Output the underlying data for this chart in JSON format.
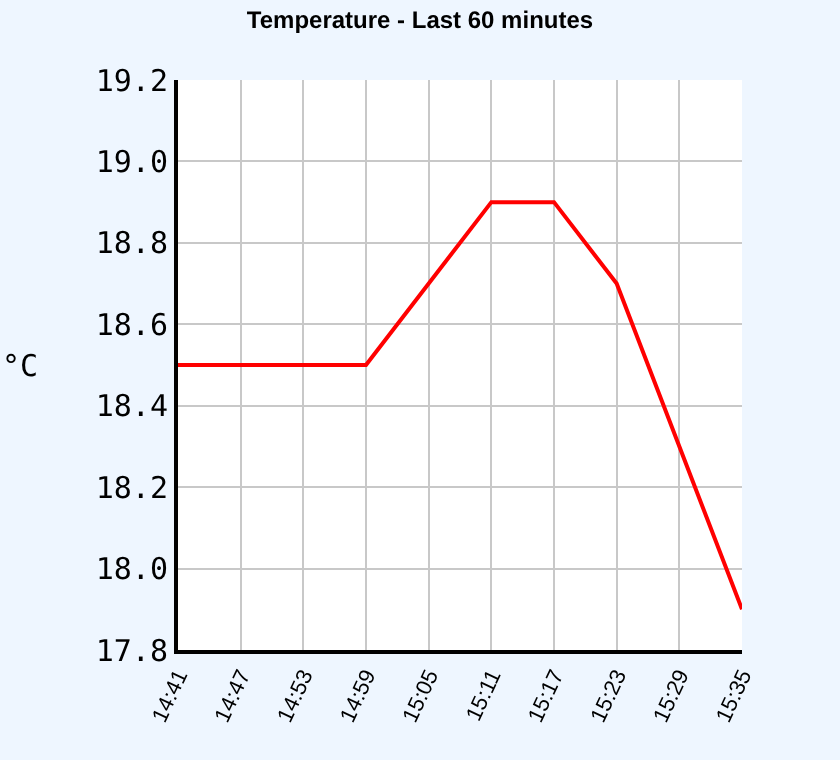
{
  "chart_data": {
    "type": "line",
    "title": "Temperature - Last 60 minutes",
    "ylabel": "°C",
    "x": [
      14.683333,
      14.983333,
      15.183333,
      15.283333,
      15.383333,
      15.583333
    ],
    "series": [
      {
        "color": "#ff0000",
        "values": [
          18.5,
          18.5,
          18.9,
          18.9,
          18.7,
          17.9
        ]
      }
    ],
    "xlim": [
      14.683333,
      15.583333
    ],
    "xticks": [
      {
        "value": 14.683333,
        "label": "14:41"
      },
      {
        "value": 14.783333,
        "label": "14:47"
      },
      {
        "value": 14.883333,
        "label": "14:53"
      },
      {
        "value": 14.983333,
        "label": "14:59"
      },
      {
        "value": 15.083333,
        "label": "15:05"
      },
      {
        "value": 15.183333,
        "label": "15:11"
      },
      {
        "value": 15.283333,
        "label": "15:17"
      },
      {
        "value": 15.383333,
        "label": "15:23"
      },
      {
        "value": 15.483333,
        "label": "15:29"
      },
      {
        "value": 15.583333,
        "label": "15:35"
      }
    ],
    "ylim": [
      17.8,
      19.2
    ],
    "yticks": [
      {
        "value": 17.8,
        "label": "17.8"
      },
      {
        "value": 18.0,
        "label": "18.0"
      },
      {
        "value": 18.2,
        "label": "18.2"
      },
      {
        "value": 18.4,
        "label": "18.4"
      },
      {
        "value": 18.6,
        "label": "18.6"
      },
      {
        "value": 18.8,
        "label": "18.8"
      },
      {
        "value": 19.0,
        "label": "19.0"
      },
      {
        "value": 19.2,
        "label": "19.2"
      }
    ],
    "grid": true,
    "marker": "none",
    "line_style": "solid"
  }
}
